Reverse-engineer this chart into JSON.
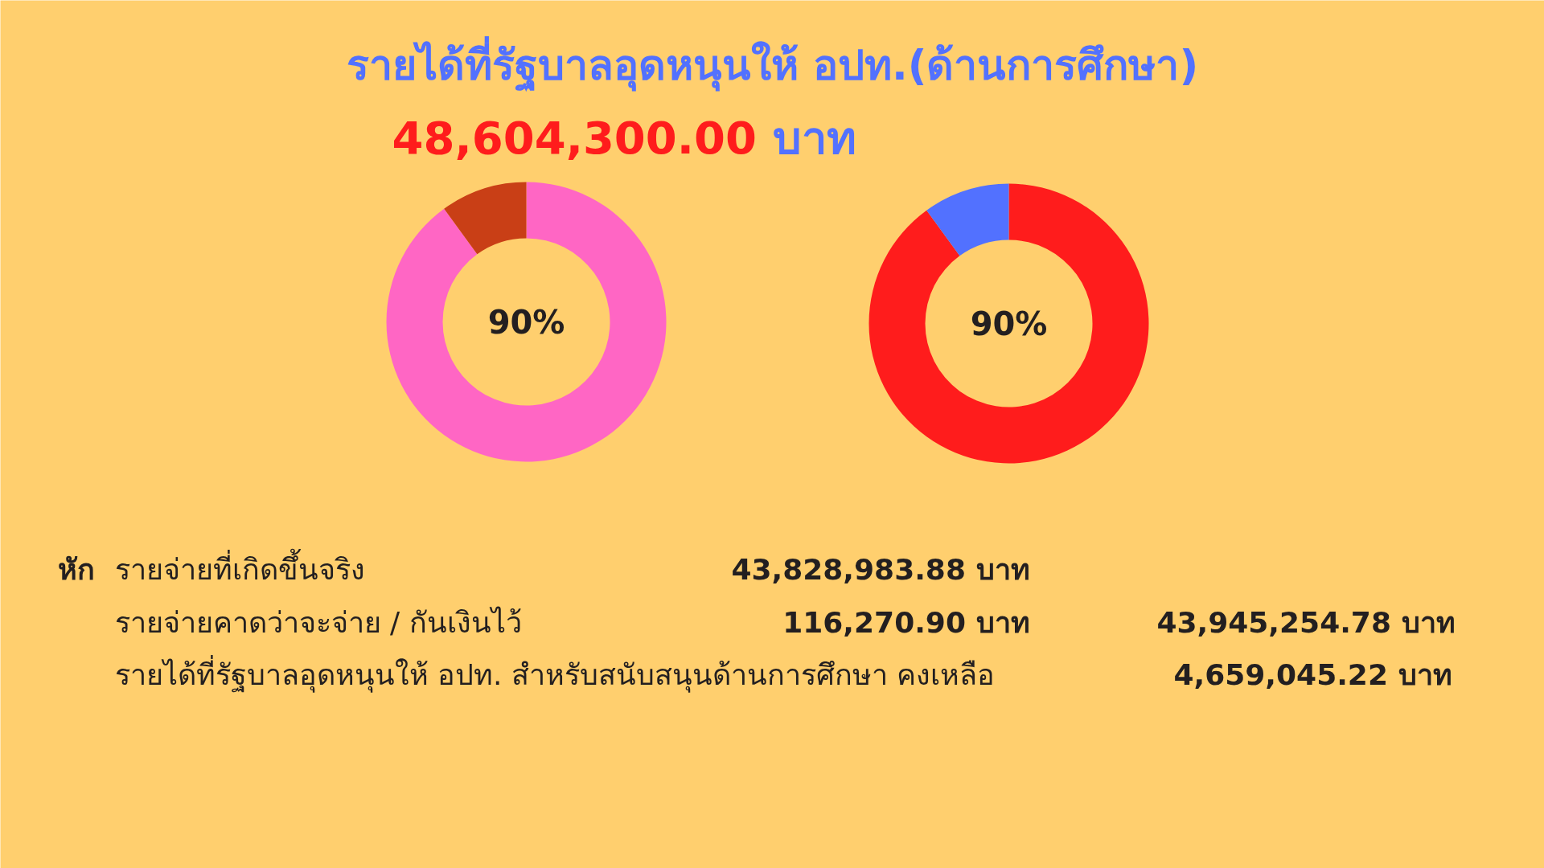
{
  "chart_data": [
    {
      "type": "donut",
      "title": "รายได้ที่รัฐบาลอุดหนุนให้ อปท.(ด้านการศึกษา)",
      "subtitle": "48,604,300.00 บาท",
      "categories": [
        null,
        null
      ],
      "values": [
        90,
        10
      ],
      "colors": [
        "#ff66c4",
        "#c93f16"
      ],
      "value_labels": [
        "90%",
        null
      ],
      "annotations": [
        "หัก",
        "รายจ่ายที่เกิดขึ้นจริง",
        "43,828,983.88 บาท",
        "รายจ่ายคาดว่าจะจ่าย / กันเงินไว้",
        "116,270.90 บาท",
        "43,945,254.78 บาท",
        "รายได้ที่รัฐบาลอุดหนุนให้ อปท. สำหรับสนับสนุนด้านการศึกษา คงเหลือ",
        "4,659,045.22 บาท"
      ]
    },
    {
      "type": "donut",
      "categories": [
        null,
        null
      ],
      "values": [
        90,
        10
      ],
      "colors": [
        "#ff1c1c",
        "#5271ff"
      ],
      "value_labels": [
        "90%",
        null
      ]
    }
  ]
}
